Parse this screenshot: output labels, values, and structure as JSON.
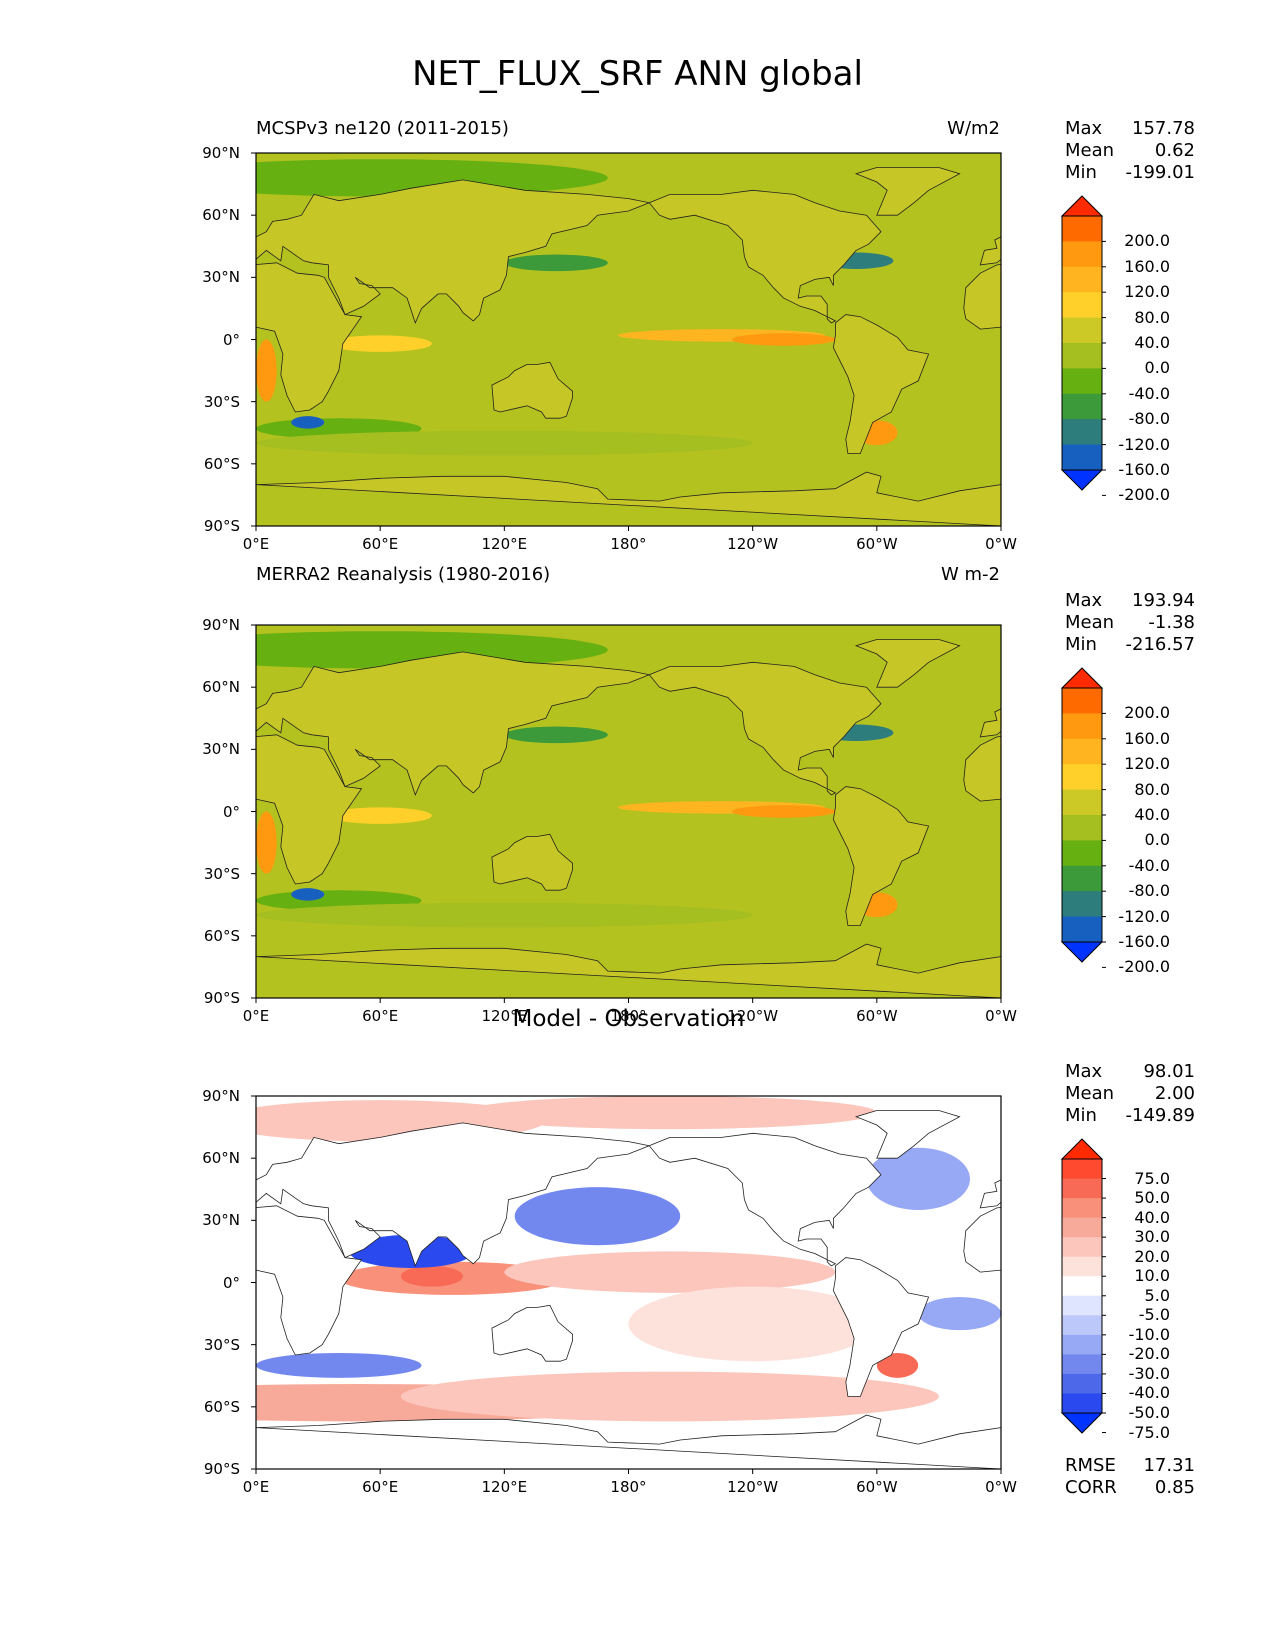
{
  "figure": {
    "title": "NET_FLUX_SRF ANN global"
  },
  "axes": {
    "yticks": [
      "90°N",
      "60°N",
      "30°N",
      "0°",
      "30°S",
      "60°S",
      "90°S"
    ],
    "xticks": [
      "0°E",
      "60°E",
      "120°E",
      "180°",
      "120°W",
      "60°W",
      "0°W"
    ]
  },
  "panels": [
    {
      "title_left": "MCSPv3 ne120 (2011-2015)",
      "title_right": "W/m2",
      "stats": [
        {
          "label": "Max",
          "value": "157.78"
        },
        {
          "label": "Mean",
          "value": "0.62"
        },
        {
          "label": "Min",
          "value": "-199.01"
        }
      ],
      "colorbar_labels": [
        "200.0",
        "160.0",
        "120.0",
        "80.0",
        "40.0",
        "0.0",
        "-40.0",
        "-80.0",
        "-120.0",
        "-160.0",
        "-200.0"
      ],
      "colorbar_colors": [
        "#ff2a00",
        "#ff6a00",
        "#ff9a10",
        "#ffb420",
        "#ffd02a",
        "#ccc825",
        "#a6bf20",
        "#66b012",
        "#3d9a3a",
        "#2e7d7d",
        "#1760c0",
        "#0033ff"
      ]
    },
    {
      "title_left": "MERRA2 Reanalysis (1980-2016)",
      "title_right": "W m-2",
      "stats": [
        {
          "label": "Max",
          "value": "193.94"
        },
        {
          "label": "Mean",
          "value": "-1.38"
        },
        {
          "label": "Min",
          "value": "-216.57"
        }
      ],
      "colorbar_labels": [
        "200.0",
        "160.0",
        "120.0",
        "80.0",
        "40.0",
        "0.0",
        "-40.0",
        "-80.0",
        "-120.0",
        "-160.0",
        "-200.0"
      ],
      "colorbar_colors": [
        "#ff2a00",
        "#ff6a00",
        "#ff9a10",
        "#ffb420",
        "#ffd02a",
        "#ccc825",
        "#a6bf20",
        "#66b012",
        "#3d9a3a",
        "#2e7d7d",
        "#1760c0",
        "#0033ff"
      ]
    },
    {
      "title_center": "Model - Observation",
      "stats": [
        {
          "label": "Max",
          "value": "98.01"
        },
        {
          "label": "Mean",
          "value": "2.00"
        },
        {
          "label": "Min",
          "value": "-149.89"
        }
      ],
      "extra_stats": [
        {
          "label": "RMSE",
          "value": "17.31"
        },
        {
          "label": "CORR",
          "value": "0.85"
        }
      ],
      "colorbar_labels": [
        "75.0",
        "50.0",
        "40.0",
        "30.0",
        "20.0",
        "10.0",
        "5.0",
        "-5.0",
        "-10.0",
        "-20.0",
        "-30.0",
        "-40.0",
        "-50.0",
        "-75.0"
      ],
      "colorbar_colors": [
        "#ff2a00",
        "#ff4a30",
        "#f86a55",
        "#f8907a",
        "#f8aa9a",
        "#fcc6bc",
        "#fde2dc",
        "#ffffff",
        "#dfe4ff",
        "#bcc8fa",
        "#97a8f5",
        "#7288ef",
        "#4d68e8",
        "#2a4af0",
        "#0033ff"
      ]
    }
  ]
}
